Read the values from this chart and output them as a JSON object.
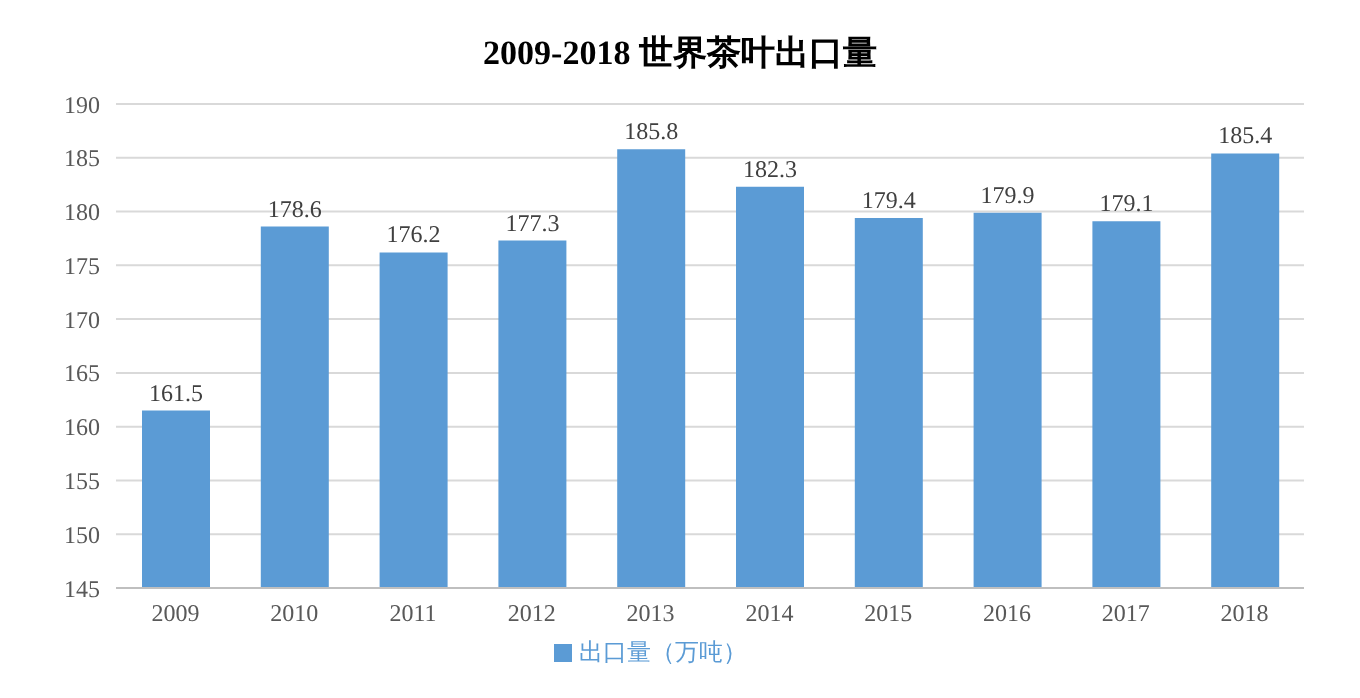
{
  "chart_data": {
    "type": "bar",
    "title": "2009-2018 世界茶叶出口量",
    "categories": [
      "2009",
      "2010",
      "2011",
      "2012",
      "2013",
      "2014",
      "2015",
      "2016",
      "2017",
      "2018"
    ],
    "series": [
      {
        "name": "出口量（万吨）",
        "color": "#5b9bd5",
        "values": [
          161.5,
          178.6,
          176.2,
          177.3,
          185.8,
          182.3,
          179.4,
          179.9,
          179.1,
          185.4
        ]
      }
    ],
    "ylim": [
      145,
      190
    ],
    "yticks": [
      145,
      150,
      155,
      160,
      165,
      170,
      175,
      180,
      185,
      190
    ],
    "grid": "y",
    "legend": "bottom",
    "data_labels": true
  }
}
